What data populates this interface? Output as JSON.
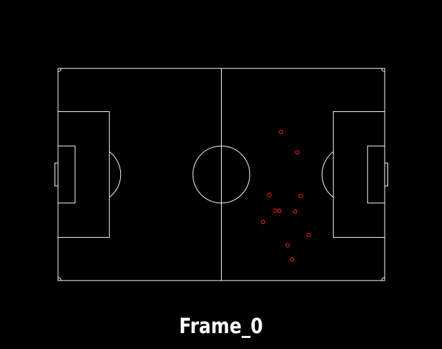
{
  "frame_label": "Frame_0",
  "colors": {
    "background": "#000000",
    "lines": "#ffffff",
    "players": "#ff2020"
  },
  "pitch": {
    "length": 105,
    "width": 68
  },
  "players": [
    {
      "x": 71.7,
      "y": 20.3
    },
    {
      "x": 76.9,
      "y": 26.9
    },
    {
      "x": 67.9,
      "y": 40.5
    },
    {
      "x": 78.0,
      "y": 40.9
    },
    {
      "x": 69.9,
      "y": 45.6
    },
    {
      "x": 71.1,
      "y": 45.6
    },
    {
      "x": 76.2,
      "y": 45.9
    },
    {
      "x": 65.9,
      "y": 49.2
    },
    {
      "x": 80.5,
      "y": 53.4
    },
    {
      "x": 73.8,
      "y": 56.7
    },
    {
      "x": 75.3,
      "y": 61.2
    }
  ]
}
